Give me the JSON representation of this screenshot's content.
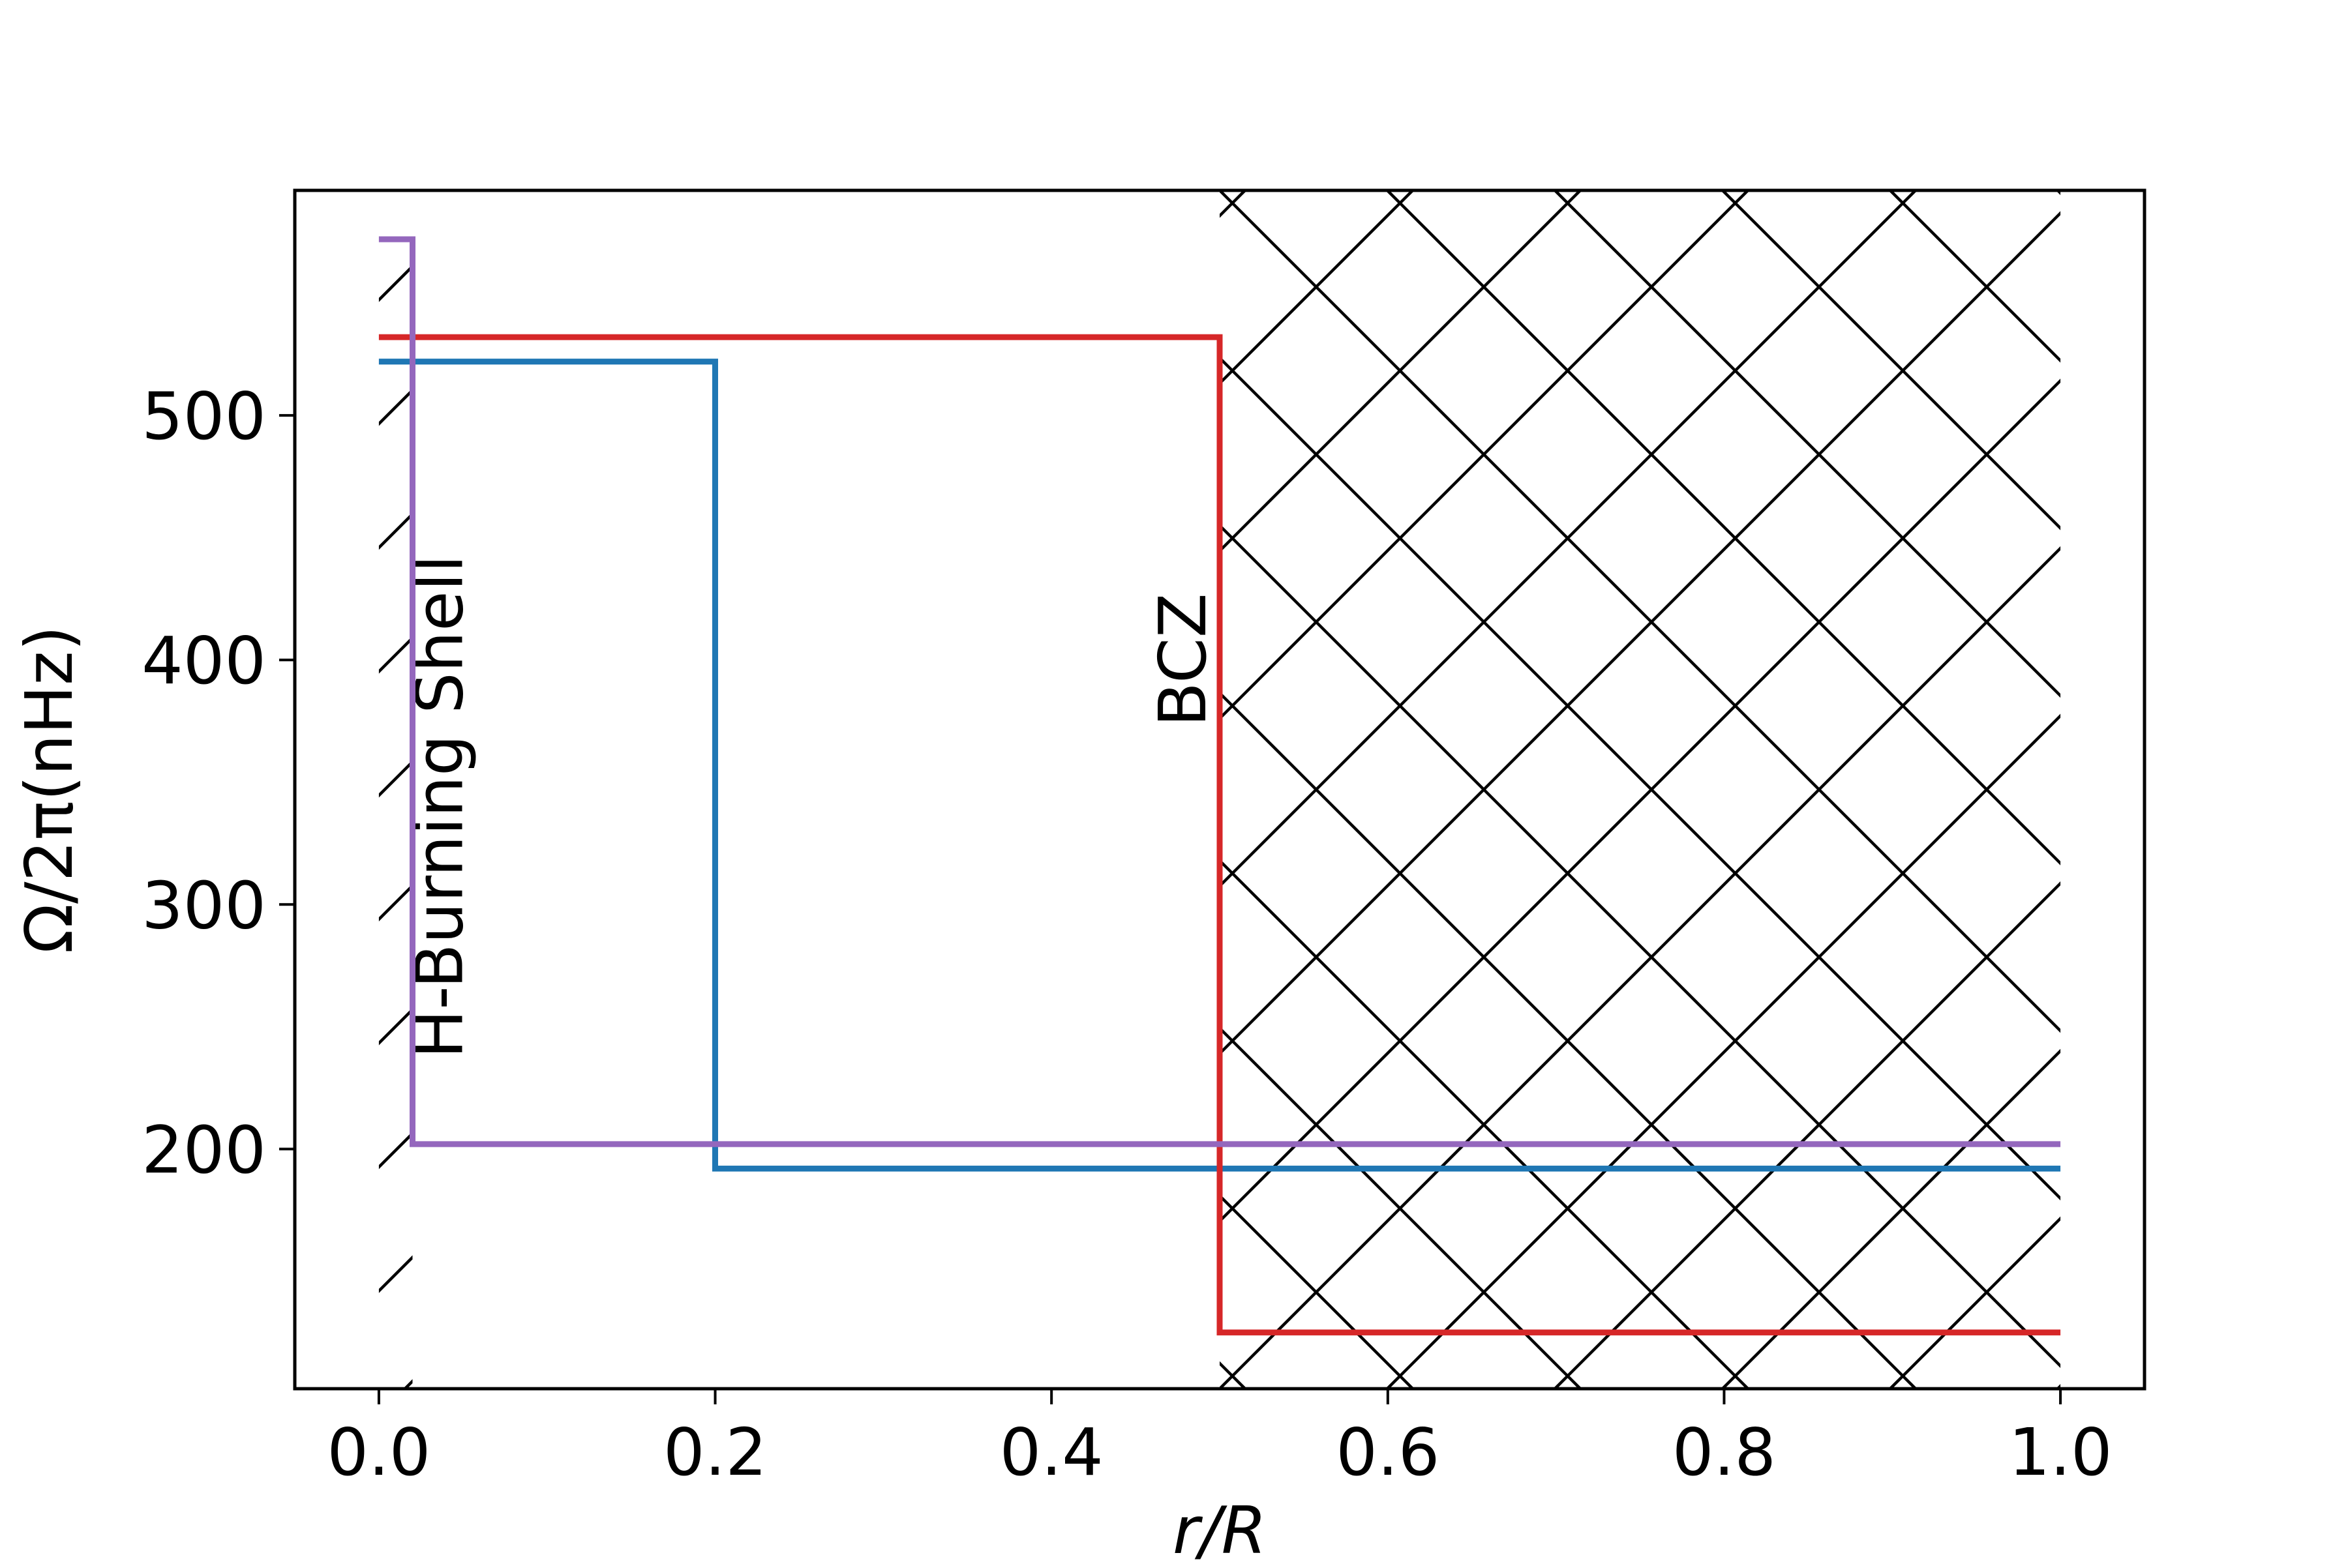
{
  "chart_data": {
    "type": "line",
    "title": "",
    "xlabel": "r/R",
    "ylabel": "Ω/2π(nHz)",
    "xlim": [
      -0.05,
      1.05
    ],
    "ylim": [
      102,
      592
    ],
    "x_ticks": [
      0.0,
      0.2,
      0.4,
      0.6,
      0.8,
      1.0
    ],
    "x_tick_labels": [
      "0.0",
      "0.2",
      "0.4",
      "0.6",
      "0.8",
      "1.0"
    ],
    "y_ticks": [
      200,
      300,
      400,
      500
    ],
    "y_tick_labels": [
      "200",
      "300",
      "400",
      "500"
    ],
    "grid": false,
    "legend": "none",
    "series": [
      {
        "color": "#1f77b4",
        "x": [
          0.0,
          0.2,
          0.2,
          1.0
        ],
        "y": [
          522,
          522,
          192,
          192
        ]
      },
      {
        "color": "#d62728",
        "x": [
          0.0,
          0.5,
          0.5,
          1.0
        ],
        "y": [
          532,
          532,
          125,
          125
        ]
      },
      {
        "color": "#9467bd",
        "x": [
          0.0,
          0.02,
          0.02,
          1.0
        ],
        "y": [
          572,
          572,
          202,
          202
        ]
      }
    ],
    "regions": [
      {
        "label": "H-Burning Shell",
        "x_range": [
          0.0,
          0.02
        ],
        "hatch": "/"
      },
      {
        "label": "BCZ",
        "x_range": [
          0.5,
          1.0
        ],
        "hatch": "x"
      }
    ]
  }
}
